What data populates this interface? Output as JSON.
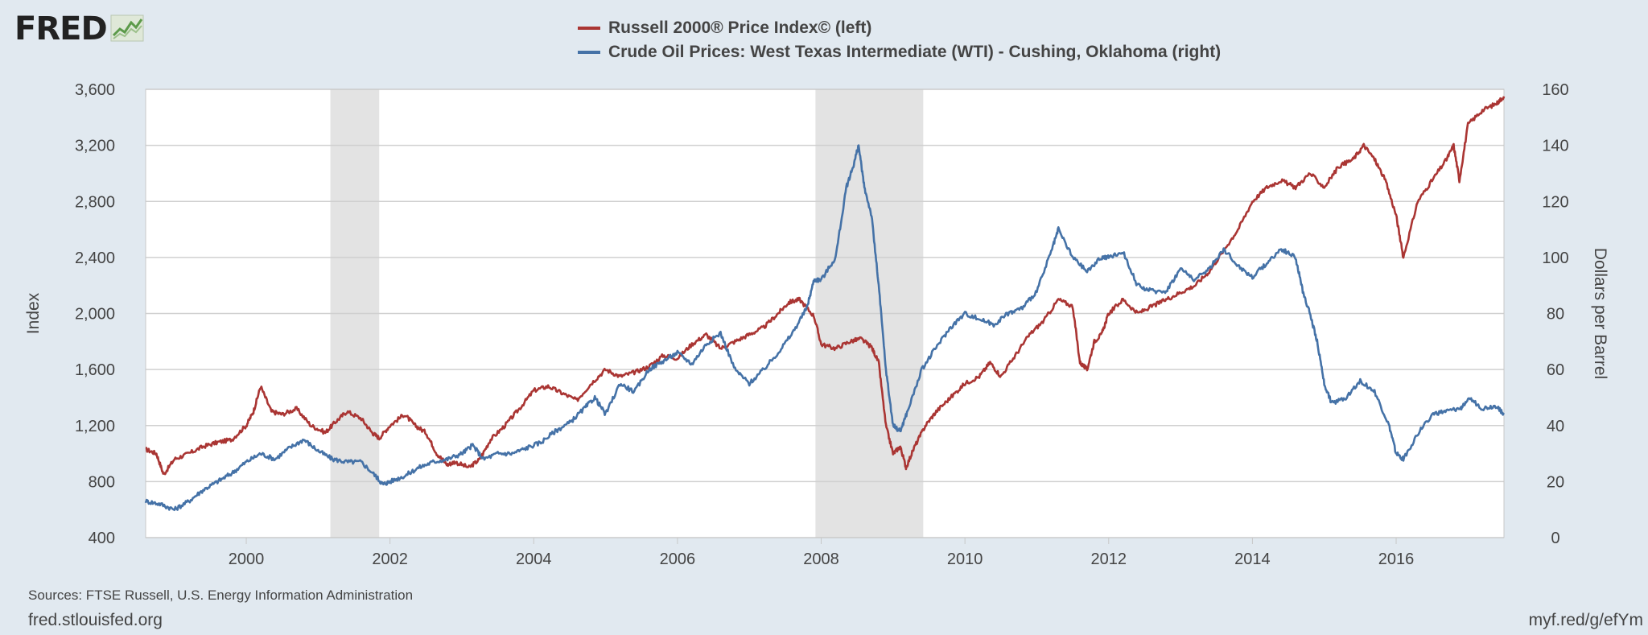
{
  "logo": {
    "text": "FRED",
    "icon": "chart-line-icon"
  },
  "legend": {
    "items": [
      {
        "label": "Russell 2000® Price Index© (left)",
        "color": "#aa3533"
      },
      {
        "label": "Crude Oil Prices: West Texas Intermediate (WTI) - Cushing, Oklahoma (right)",
        "color": "#4572a7"
      }
    ]
  },
  "footer": {
    "sources": "Sources: FTSE Russell, U.S. Energy Information Administration",
    "site": "fred.stlouisfed.org",
    "link": "myf.red/g/efYm"
  },
  "chart_data": {
    "type": "line",
    "title": "",
    "xlabel": "",
    "ylabel": "Index",
    "y2label": "Dollars per Barrel",
    "xlim": [
      1998.6,
      2017.5
    ],
    "ylim": [
      400,
      3600
    ],
    "y2lim": [
      0,
      160
    ],
    "x_ticks": [
      2000,
      2002,
      2004,
      2006,
      2008,
      2010,
      2012,
      2014,
      2016
    ],
    "y_ticks": [
      400,
      800,
      1200,
      1600,
      2000,
      2400,
      2800,
      3200,
      3600
    ],
    "y2_ticks": [
      0,
      20,
      40,
      60,
      80,
      100,
      120,
      140,
      160
    ],
    "recessions": [
      [
        2001.17,
        2001.85
      ],
      [
        2007.92,
        2009.42
      ]
    ],
    "series": [
      {
        "name": "Russell 2000® Price Index© (left)",
        "axis": "left",
        "color": "#aa3533",
        "x": [
          1998.6,
          1998.75,
          1998.85,
          1999.0,
          1999.2,
          1999.4,
          1999.6,
          1999.8,
          2000.0,
          2000.1,
          2000.2,
          2000.35,
          2000.5,
          2000.7,
          2000.9,
          2001.1,
          2001.25,
          2001.4,
          2001.6,
          2001.75,
          2001.85,
          2002.0,
          2002.2,
          2002.35,
          2002.5,
          2002.65,
          2002.8,
          2002.9,
          2003.1,
          2003.25,
          2003.4,
          2003.6,
          2003.8,
          2004.0,
          2004.2,
          2004.4,
          2004.6,
          2004.8,
          2005.0,
          2005.2,
          2005.4,
          2005.6,
          2005.8,
          2006.0,
          2006.2,
          2006.4,
          2006.6,
          2006.8,
          2007.0,
          2007.2,
          2007.4,
          2007.55,
          2007.7,
          2007.9,
          2008.0,
          2008.2,
          2008.4,
          2008.55,
          2008.7,
          2008.8,
          2008.9,
          2009.0,
          2009.1,
          2009.18,
          2009.3,
          2009.45,
          2009.6,
          2009.8,
          2010.0,
          2010.2,
          2010.35,
          2010.5,
          2010.7,
          2010.9,
          2011.1,
          2011.3,
          2011.5,
          2011.6,
          2011.7,
          2011.8,
          2011.9,
          2012.0,
          2012.2,
          2012.4,
          2012.6,
          2012.8,
          2013.0,
          2013.2,
          2013.4,
          2013.6,
          2013.8,
          2014.0,
          2014.2,
          2014.4,
          2014.6,
          2014.8,
          2015.0,
          2015.2,
          2015.4,
          2015.55,
          2015.7,
          2015.85,
          2016.0,
          2016.1,
          2016.3,
          2016.5,
          2016.7,
          2016.8,
          2016.88,
          2017.0,
          2017.2,
          2017.4,
          2017.5
        ],
        "values": [
          1030,
          1000,
          850,
          960,
          1000,
          1050,
          1080,
          1100,
          1200,
          1300,
          1480,
          1300,
          1280,
          1320,
          1200,
          1150,
          1230,
          1300,
          1250,
          1150,
          1110,
          1200,
          1280,
          1200,
          1150,
          1000,
          920,
          940,
          900,
          960,
          1100,
          1200,
          1320,
          1450,
          1480,
          1430,
          1380,
          1500,
          1600,
          1550,
          1580,
          1620,
          1700,
          1680,
          1780,
          1850,
          1750,
          1800,
          1850,
          1900,
          2000,
          2080,
          2100,
          1980,
          1780,
          1750,
          1800,
          1820,
          1760,
          1650,
          1200,
          1000,
          1050,
          900,
          1050,
          1200,
          1300,
          1400,
          1500,
          1550,
          1650,
          1550,
          1700,
          1850,
          1950,
          2100,
          2050,
          1650,
          1600,
          1800,
          1850,
          2000,
          2100,
          2000,
          2050,
          2100,
          2150,
          2200,
          2300,
          2450,
          2600,
          2800,
          2900,
          2950,
          2900,
          3000,
          2900,
          3050,
          3100,
          3200,
          3100,
          2950,
          2700,
          2400,
          2800,
          2950,
          3100,
          3200,
          2950,
          3350,
          3450,
          3500,
          3550
        ]
      },
      {
        "name": "Crude Oil Prices: West Texas Intermediate (WTI) - Cushing, Oklahoma (right)",
        "axis": "right",
        "color": "#4572a7",
        "x": [
          1998.6,
          1998.8,
          1999.0,
          1999.2,
          1999.4,
          1999.6,
          1999.8,
          2000.0,
          2000.2,
          2000.4,
          2000.6,
          2000.8,
          2001.0,
          2001.2,
          2001.4,
          2001.6,
          2001.8,
          2001.9,
          2002.0,
          2002.2,
          2002.4,
          2002.6,
          2002.8,
          2003.0,
          2003.15,
          2003.3,
          2003.5,
          2003.7,
          2003.9,
          2004.1,
          2004.3,
          2004.5,
          2004.7,
          2004.85,
          2005.0,
          2005.2,
          2005.4,
          2005.6,
          2005.8,
          2006.0,
          2006.2,
          2006.4,
          2006.6,
          2006.8,
          2007.0,
          2007.2,
          2007.4,
          2007.6,
          2007.8,
          2007.9,
          2008.0,
          2008.2,
          2008.35,
          2008.45,
          2008.52,
          2008.6,
          2008.7,
          2008.8,
          2008.9,
          2009.0,
          2009.1,
          2009.2,
          2009.4,
          2009.6,
          2009.8,
          2010.0,
          2010.2,
          2010.4,
          2010.6,
          2010.8,
          2011.0,
          2011.2,
          2011.3,
          2011.5,
          2011.7,
          2011.9,
          2012.0,
          2012.2,
          2012.4,
          2012.6,
          2012.8,
          2013.0,
          2013.2,
          2013.4,
          2013.6,
          2013.8,
          2014.0,
          2014.2,
          2014.4,
          2014.6,
          2014.7,
          2014.8,
          2014.9,
          2015.0,
          2015.1,
          2015.3,
          2015.5,
          2015.7,
          2015.9,
          2016.0,
          2016.1,
          2016.3,
          2016.5,
          2016.7,
          2016.9,
          2017.0,
          2017.2,
          2017.4,
          2017.5
        ],
        "values": [
          13,
          12,
          10,
          13,
          17,
          20,
          23,
          27,
          30,
          28,
          32,
          35,
          31,
          28,
          27,
          27,
          22,
          19,
          20,
          22,
          25,
          27,
          28,
          30,
          33,
          28,
          30,
          30,
          32,
          34,
          38,
          41,
          46,
          50,
          44,
          55,
          52,
          60,
          63,
          66,
          62,
          69,
          73,
          60,
          55,
          60,
          66,
          73,
          82,
          92,
          92,
          100,
          125,
          133,
          140,
          125,
          115,
          90,
          60,
          40,
          38,
          45,
          60,
          68,
          75,
          80,
          78,
          76,
          80,
          82,
          88,
          102,
          110,
          100,
          95,
          100,
          100,
          102,
          90,
          88,
          88,
          96,
          92,
          96,
          103,
          97,
          93,
          98,
          103,
          100,
          88,
          80,
          70,
          55,
          48,
          50,
          56,
          52,
          40,
          30,
          28,
          37,
          44,
          45,
          46,
          50,
          46,
          47,
          44
        ]
      }
    ]
  }
}
